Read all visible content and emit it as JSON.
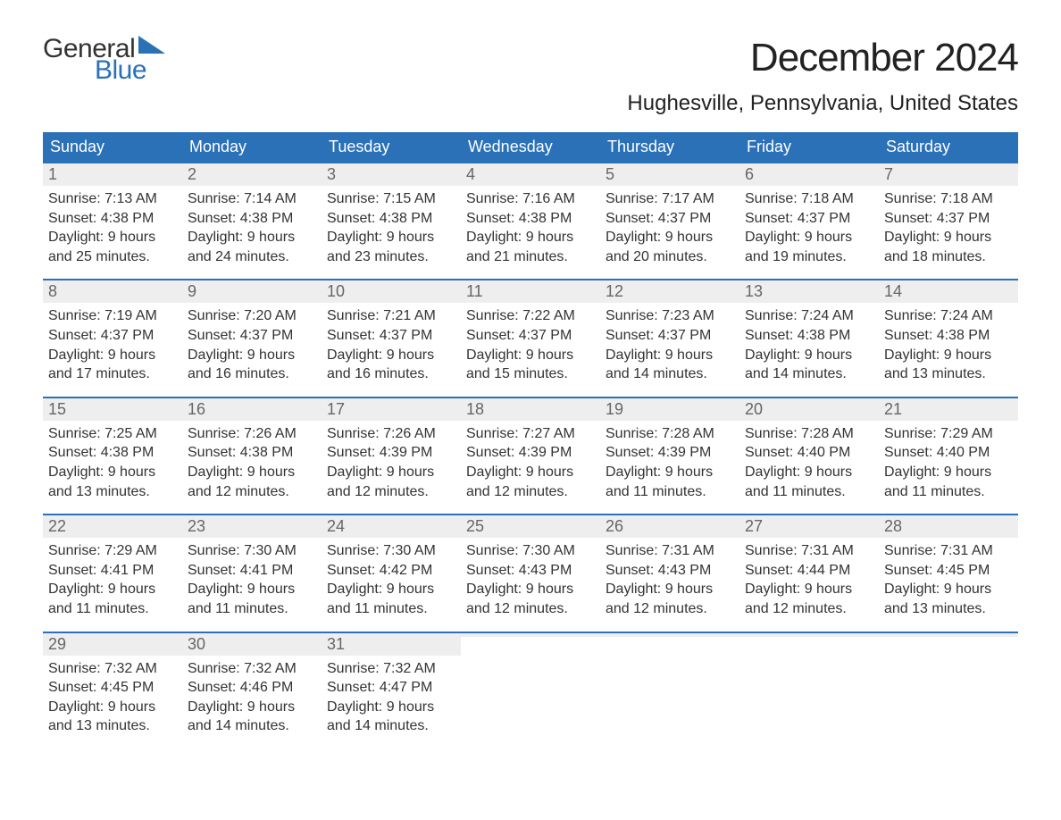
{
  "logo": {
    "text_general": "General",
    "text_blue": "Blue",
    "flag_color": "#2a71b8"
  },
  "header": {
    "month_title": "December 2024",
    "location": "Hughesville, Pennsylvania, United States"
  },
  "styling": {
    "header_bg": "#2a71b8",
    "header_text": "#ffffff",
    "daynum_bg": "#eeeeee",
    "daynum_color": "#666666",
    "body_text": "#333333",
    "week_border": "#2a71b8",
    "page_bg": "#ffffff",
    "title_fontsize": 44,
    "location_fontsize": 24,
    "weekday_fontsize": 18,
    "daynum_fontsize": 18,
    "body_fontsize": 16
  },
  "weekdays": [
    "Sunday",
    "Monday",
    "Tuesday",
    "Wednesday",
    "Thursday",
    "Friday",
    "Saturday"
  ],
  "weeks": [
    [
      {
        "n": "1",
        "sunrise": "Sunrise: 7:13 AM",
        "sunset": "Sunset: 4:38 PM",
        "d1": "Daylight: 9 hours",
        "d2": "and 25 minutes."
      },
      {
        "n": "2",
        "sunrise": "Sunrise: 7:14 AM",
        "sunset": "Sunset: 4:38 PM",
        "d1": "Daylight: 9 hours",
        "d2": "and 24 minutes."
      },
      {
        "n": "3",
        "sunrise": "Sunrise: 7:15 AM",
        "sunset": "Sunset: 4:38 PM",
        "d1": "Daylight: 9 hours",
        "d2": "and 23 minutes."
      },
      {
        "n": "4",
        "sunrise": "Sunrise: 7:16 AM",
        "sunset": "Sunset: 4:38 PM",
        "d1": "Daylight: 9 hours",
        "d2": "and 21 minutes."
      },
      {
        "n": "5",
        "sunrise": "Sunrise: 7:17 AM",
        "sunset": "Sunset: 4:37 PM",
        "d1": "Daylight: 9 hours",
        "d2": "and 20 minutes."
      },
      {
        "n": "6",
        "sunrise": "Sunrise: 7:18 AM",
        "sunset": "Sunset: 4:37 PM",
        "d1": "Daylight: 9 hours",
        "d2": "and 19 minutes."
      },
      {
        "n": "7",
        "sunrise": "Sunrise: 7:18 AM",
        "sunset": "Sunset: 4:37 PM",
        "d1": "Daylight: 9 hours",
        "d2": "and 18 minutes."
      }
    ],
    [
      {
        "n": "8",
        "sunrise": "Sunrise: 7:19 AM",
        "sunset": "Sunset: 4:37 PM",
        "d1": "Daylight: 9 hours",
        "d2": "and 17 minutes."
      },
      {
        "n": "9",
        "sunrise": "Sunrise: 7:20 AM",
        "sunset": "Sunset: 4:37 PM",
        "d1": "Daylight: 9 hours",
        "d2": "and 16 minutes."
      },
      {
        "n": "10",
        "sunrise": "Sunrise: 7:21 AM",
        "sunset": "Sunset: 4:37 PM",
        "d1": "Daylight: 9 hours",
        "d2": "and 16 minutes."
      },
      {
        "n": "11",
        "sunrise": "Sunrise: 7:22 AM",
        "sunset": "Sunset: 4:37 PM",
        "d1": "Daylight: 9 hours",
        "d2": "and 15 minutes."
      },
      {
        "n": "12",
        "sunrise": "Sunrise: 7:23 AM",
        "sunset": "Sunset: 4:37 PM",
        "d1": "Daylight: 9 hours",
        "d2": "and 14 minutes."
      },
      {
        "n": "13",
        "sunrise": "Sunrise: 7:24 AM",
        "sunset": "Sunset: 4:38 PM",
        "d1": "Daylight: 9 hours",
        "d2": "and 14 minutes."
      },
      {
        "n": "14",
        "sunrise": "Sunrise: 7:24 AM",
        "sunset": "Sunset: 4:38 PM",
        "d1": "Daylight: 9 hours",
        "d2": "and 13 minutes."
      }
    ],
    [
      {
        "n": "15",
        "sunrise": "Sunrise: 7:25 AM",
        "sunset": "Sunset: 4:38 PM",
        "d1": "Daylight: 9 hours",
        "d2": "and 13 minutes."
      },
      {
        "n": "16",
        "sunrise": "Sunrise: 7:26 AM",
        "sunset": "Sunset: 4:38 PM",
        "d1": "Daylight: 9 hours",
        "d2": "and 12 minutes."
      },
      {
        "n": "17",
        "sunrise": "Sunrise: 7:26 AM",
        "sunset": "Sunset: 4:39 PM",
        "d1": "Daylight: 9 hours",
        "d2": "and 12 minutes."
      },
      {
        "n": "18",
        "sunrise": "Sunrise: 7:27 AM",
        "sunset": "Sunset: 4:39 PM",
        "d1": "Daylight: 9 hours",
        "d2": "and 12 minutes."
      },
      {
        "n": "19",
        "sunrise": "Sunrise: 7:28 AM",
        "sunset": "Sunset: 4:39 PM",
        "d1": "Daylight: 9 hours",
        "d2": "and 11 minutes."
      },
      {
        "n": "20",
        "sunrise": "Sunrise: 7:28 AM",
        "sunset": "Sunset: 4:40 PM",
        "d1": "Daylight: 9 hours",
        "d2": "and 11 minutes."
      },
      {
        "n": "21",
        "sunrise": "Sunrise: 7:29 AM",
        "sunset": "Sunset: 4:40 PM",
        "d1": "Daylight: 9 hours",
        "d2": "and 11 minutes."
      }
    ],
    [
      {
        "n": "22",
        "sunrise": "Sunrise: 7:29 AM",
        "sunset": "Sunset: 4:41 PM",
        "d1": "Daylight: 9 hours",
        "d2": "and 11 minutes."
      },
      {
        "n": "23",
        "sunrise": "Sunrise: 7:30 AM",
        "sunset": "Sunset: 4:41 PM",
        "d1": "Daylight: 9 hours",
        "d2": "and 11 minutes."
      },
      {
        "n": "24",
        "sunrise": "Sunrise: 7:30 AM",
        "sunset": "Sunset: 4:42 PM",
        "d1": "Daylight: 9 hours",
        "d2": "and 11 minutes."
      },
      {
        "n": "25",
        "sunrise": "Sunrise: 7:30 AM",
        "sunset": "Sunset: 4:43 PM",
        "d1": "Daylight: 9 hours",
        "d2": "and 12 minutes."
      },
      {
        "n": "26",
        "sunrise": "Sunrise: 7:31 AM",
        "sunset": "Sunset: 4:43 PM",
        "d1": "Daylight: 9 hours",
        "d2": "and 12 minutes."
      },
      {
        "n": "27",
        "sunrise": "Sunrise: 7:31 AM",
        "sunset": "Sunset: 4:44 PM",
        "d1": "Daylight: 9 hours",
        "d2": "and 12 minutes."
      },
      {
        "n": "28",
        "sunrise": "Sunrise: 7:31 AM",
        "sunset": "Sunset: 4:45 PM",
        "d1": "Daylight: 9 hours",
        "d2": "and 13 minutes."
      }
    ],
    [
      {
        "n": "29",
        "sunrise": "Sunrise: 7:32 AM",
        "sunset": "Sunset: 4:45 PM",
        "d1": "Daylight: 9 hours",
        "d2": "and 13 minutes."
      },
      {
        "n": "30",
        "sunrise": "Sunrise: 7:32 AM",
        "sunset": "Sunset: 4:46 PM",
        "d1": "Daylight: 9 hours",
        "d2": "and 14 minutes."
      },
      {
        "n": "31",
        "sunrise": "Sunrise: 7:32 AM",
        "sunset": "Sunset: 4:47 PM",
        "d1": "Daylight: 9 hours",
        "d2": "and 14 minutes."
      },
      {
        "empty": true
      },
      {
        "empty": true
      },
      {
        "empty": true
      },
      {
        "empty": true
      }
    ]
  ]
}
